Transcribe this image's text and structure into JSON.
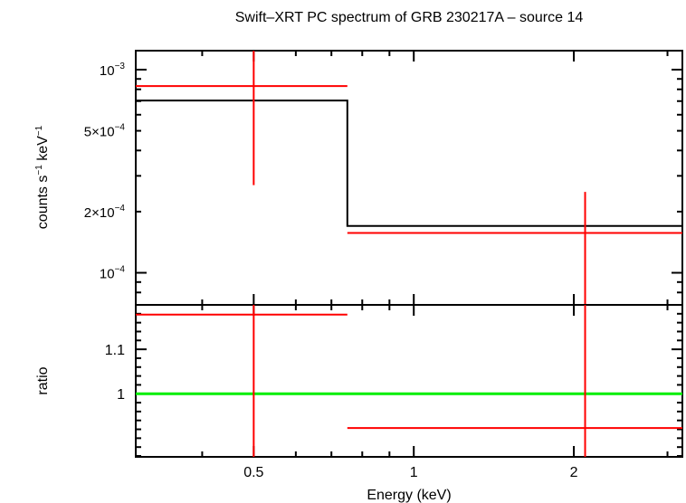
{
  "chart_data": [
    {
      "type": "line",
      "panel": "spectrum",
      "title": "Swift–XRT PC spectrum of GRB 230217A – source 14",
      "ylabel": {
        "base": "counts s",
        "exp1": "−1",
        "mid": " keV",
        "exp2": "−1"
      },
      "x_scale": "log",
      "y_scale": "log",
      "xlim": [
        0.3,
        3.2
      ],
      "ylim": [
        6.95e-05,
        0.00124
      ],
      "y_ticks": [
        {
          "value": 0.001,
          "mant": "10",
          "exp": "−3"
        },
        {
          "value": 0.0005,
          "mant": "5×10",
          "exp": "−4"
        },
        {
          "value": 0.0002,
          "mant": "2×10",
          "exp": "−4"
        },
        {
          "value": 0.0001,
          "mant": "10",
          "exp": "−4"
        }
      ],
      "series": [
        {
          "name": "data",
          "color": "#ff0000",
          "points": [
            {
              "x": 0.5,
              "xlo": 0.3,
              "xhi": 0.75,
              "y": 0.00083,
              "ylo": 0.00027,
              "yhi": 0.00124
            },
            {
              "x": 2.1,
              "xlo": 0.75,
              "xhi": 3.2,
              "y": 0.000157,
              "ylo": 6.95e-05,
              "yhi": 0.00025
            }
          ]
        },
        {
          "name": "model",
          "color": "#000000",
          "steps": [
            {
              "x0": 0.3,
              "x1": 0.75,
              "y": 0.000705
            },
            {
              "x0": 0.75,
              "x1": 3.2,
              "y": 0.00017
            }
          ]
        }
      ]
    },
    {
      "type": "line",
      "panel": "ratio",
      "xlabel": "Energy (keV)",
      "ylabel": "ratio",
      "x_scale": "log",
      "xlim": [
        0.3,
        3.2
      ],
      "ylim": [
        0.858,
        1.2
      ],
      "x_ticks": [
        {
          "value": 0.5,
          "label": "0.5"
        },
        {
          "value": 1,
          "label": "1"
        },
        {
          "value": 2,
          "label": "2"
        }
      ],
      "y_ticks": [
        {
          "value": 1.1,
          "label": "1.1"
        },
        {
          "value": 1,
          "label": "1"
        }
      ],
      "reference_line": {
        "y": 1,
        "color": "#00ee00"
      },
      "series": [
        {
          "name": "ratio",
          "color": "#ff0000",
          "points": [
            {
              "x": 0.5,
              "xlo": 0.3,
              "xhi": 0.75,
              "y": 1.178,
              "ylo": 0.858,
              "yhi": 1.2
            },
            {
              "x": 2.1,
              "xlo": 0.75,
              "xhi": 3.2,
              "y": 0.923,
              "ylo": 0.858,
              "yhi": 1.2
            }
          ]
        }
      ]
    }
  ]
}
